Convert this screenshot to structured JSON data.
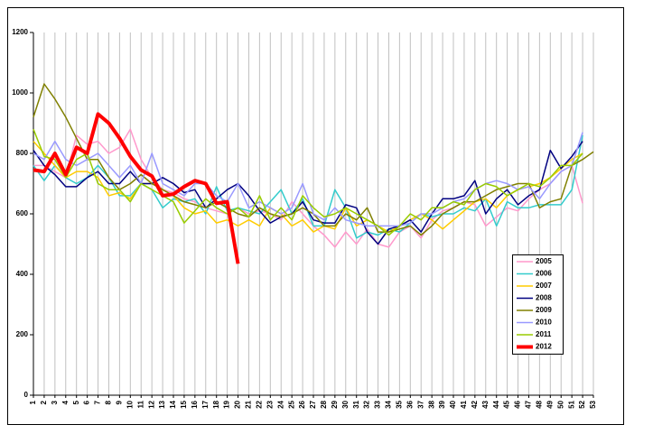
{
  "chart_data": {
    "type": "line",
    "categories": [
      "1",
      "2",
      "3",
      "4",
      "5",
      "6",
      "7",
      "8",
      "9",
      "10",
      "11",
      "12",
      "13",
      "14",
      "15",
      "16",
      "17",
      "18",
      "19",
      "20",
      "21",
      "22",
      "23",
      "24",
      "25",
      "26",
      "27",
      "28",
      "29",
      "30",
      "31",
      "32",
      "33",
      "34",
      "35",
      "36",
      "37",
      "38",
      "39",
      "40",
      "41",
      "42",
      "43",
      "44",
      "45",
      "46",
      "47",
      "48",
      "49",
      "50",
      "51",
      "52",
      "53"
    ],
    "ylim": [
      0,
      1200
    ],
    "yticks": [
      0,
      200,
      400,
      600,
      800,
      1000,
      1200
    ],
    "grid": "x",
    "legend": "lower right",
    "series": [
      {
        "name": "2005",
        "color": "#ff99cc",
        "line_width": 1.5,
        "values": [
          760,
          760,
          740,
          720,
          860,
          830,
          840,
          800,
          820,
          880,
          780,
          720,
          680,
          670,
          650,
          640,
          620,
          610,
          600,
          620,
          600,
          610,
          600,
          580,
          640,
          600,
          560,
          530,
          490,
          540,
          500,
          550,
          500,
          490,
          540,
          560,
          520,
          580,
          610,
          620,
          640,
          630,
          560,
          590,
          620,
          610,
          650,
          680,
          700,
          740,
          760,
          635,
          null
        ]
      },
      {
        "name": "2006",
        "color": "#33cccc",
        "line_width": 1.5,
        "values": [
          760,
          710,
          760,
          720,
          700,
          720,
          760,
          720,
          660,
          660,
          700,
          680,
          620,
          650,
          640,
          650,
          600,
          690,
          610,
          620,
          610,
          600,
          640,
          680,
          600,
          650,
          560,
          560,
          680,
          620,
          520,
          540,
          530,
          550,
          540,
          570,
          600,
          590,
          600,
          600,
          620,
          610,
          650,
          560,
          640,
          620,
          620,
          630,
          630,
          630,
          680,
          860,
          null
        ]
      },
      {
        "name": "2007",
        "color": "#ffcc00",
        "line_width": 1.5,
        "values": [
          840,
          800,
          760,
          720,
          740,
          740,
          720,
          660,
          670,
          650,
          700,
          700,
          680,
          660,
          620,
          600,
          610,
          570,
          580,
          560,
          580,
          560,
          620,
          600,
          560,
          580,
          540,
          560,
          550,
          620,
          560,
          580,
          560,
          540,
          560,
          580,
          600,
          580,
          550,
          580,
          610,
          640,
          650,
          620,
          660,
          680,
          690,
          700,
          720,
          750,
          780,
          800,
          null
        ]
      },
      {
        "name": "2008",
        "color": "#000080",
        "line_width": 1.5,
        "values": [
          810,
          760,
          730,
          690,
          690,
          720,
          740,
          700,
          700,
          740,
          700,
          700,
          720,
          700,
          670,
          680,
          620,
          650,
          680,
          700,
          660,
          610,
          570,
          590,
          600,
          640,
          580,
          570,
          570,
          630,
          620,
          540,
          500,
          550,
          560,
          580,
          540,
          600,
          650,
          650,
          660,
          710,
          600,
          650,
          680,
          630,
          660,
          680,
          810,
          750,
          790,
          840,
          null
        ]
      },
      {
        "name": "2009",
        "color": "#808000",
        "line_width": 1.5,
        "values": [
          920,
          1030,
          980,
          920,
          850,
          780,
          780,
          720,
          680,
          700,
          730,
          700,
          680,
          660,
          640,
          630,
          620,
          640,
          620,
          600,
          590,
          620,
          600,
          590,
          600,
          620,
          600,
          560,
          560,
          600,
          580,
          620,
          540,
          540,
          550,
          560,
          530,
          560,
          600,
          620,
          640,
          640,
          660,
          680,
          690,
          700,
          700,
          620,
          640,
          650,
          760,
          780,
          805
        ]
      },
      {
        "name": "2010",
        "color": "#9999ff",
        "line_width": 1.5,
        "values": [
          800,
          780,
          840,
          780,
          760,
          780,
          800,
          760,
          720,
          760,
          700,
          800,
          700,
          680,
          660,
          700,
          700,
          660,
          640,
          700,
          620,
          640,
          620,
          600,
          620,
          700,
          600,
          580,
          620,
          580,
          570,
          560,
          560,
          560,
          560,
          570,
          600,
          600,
          620,
          640,
          650,
          680,
          700,
          710,
          700,
          680,
          690,
          650,
          700,
          740,
          760,
          870,
          null
        ]
      },
      {
        "name": "2011",
        "color": "#99cc00",
        "line_width": 1.5,
        "values": [
          880,
          790,
          780,
          720,
          780,
          800,
          700,
          680,
          680,
          640,
          700,
          680,
          660,
          640,
          570,
          610,
          650,
          620,
          600,
          620,
          590,
          660,
          580,
          620,
          580,
          660,
          620,
          590,
          600,
          620,
          600,
          580,
          560,
          530,
          560,
          600,
          580,
          620,
          620,
          640,
          630,
          680,
          700,
          690,
          660,
          680,
          700,
          690,
          720,
          760,
          760,
          800,
          null
        ]
      },
      {
        "name": "2012",
        "color": "#ff0000",
        "line_width": 4,
        "values": [
          745,
          740,
          800,
          730,
          820,
          800,
          930,
          900,
          850,
          790,
          745,
          725,
          660,
          665,
          690,
          710,
          700,
          635,
          640,
          435,
          null,
          null,
          null,
          null,
          null,
          null,
          null,
          null,
          null,
          null,
          null,
          null,
          null,
          null,
          null,
          null,
          null,
          null,
          null,
          null,
          null,
          null,
          null,
          null,
          null,
          null,
          null,
          null,
          null,
          null,
          null,
          null,
          null
        ]
      }
    ]
  }
}
